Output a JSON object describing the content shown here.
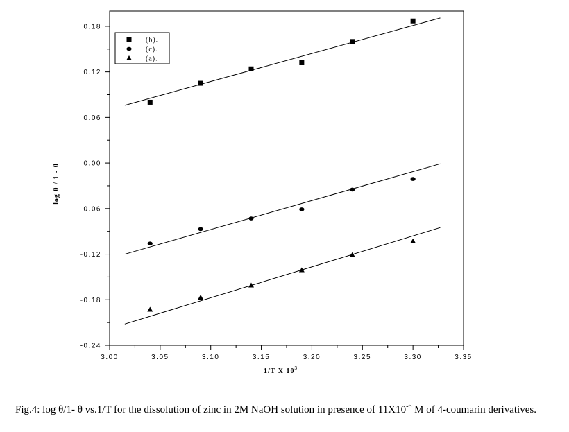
{
  "chart_data": {
    "type": "scatter",
    "title": "",
    "xlabel": "1/T  X  10",
    "xlabel_exp": "3",
    "ylabel": "log θ / 1 - θ",
    "xlim": [
      3.0,
      3.35
    ],
    "ylim": [
      -0.24,
      0.2
    ],
    "x_ticks": [
      "3.00",
      "3.05",
      "3.10",
      "3.15",
      "3.20",
      "3.25",
      "3.30",
      "3.35"
    ],
    "y_ticks": [
      "-0.24",
      "-0.18",
      "-0.12",
      "-0.06",
      "0.00",
      "0.06",
      "0.12",
      "0.18"
    ],
    "legend_position": "top-left",
    "grid": false,
    "series": [
      {
        "name": "(b).",
        "marker": "square",
        "points": [
          [
            3.04,
            0.08
          ],
          [
            3.09,
            0.105
          ],
          [
            3.14,
            0.124
          ],
          [
            3.19,
            0.132
          ],
          [
            3.24,
            0.16
          ],
          [
            3.3,
            0.187
          ]
        ],
        "fit": [
          [
            3.015,
            0.076
          ],
          [
            3.327,
            0.191
          ]
        ]
      },
      {
        "name": "(c).",
        "marker": "circle",
        "points": [
          [
            3.04,
            -0.106
          ],
          [
            3.09,
            -0.087
          ],
          [
            3.14,
            -0.073
          ],
          [
            3.19,
            -0.061
          ],
          [
            3.24,
            -0.035
          ],
          [
            3.3,
            -0.021
          ]
        ],
        "fit": [
          [
            3.015,
            -0.12
          ],
          [
            3.327,
            -0.001
          ]
        ]
      },
      {
        "name": "(a).",
        "marker": "triangle",
        "points": [
          [
            3.04,
            -0.193
          ],
          [
            3.09,
            -0.177
          ],
          [
            3.14,
            -0.161
          ],
          [
            3.19,
            -0.141
          ],
          [
            3.24,
            -0.121
          ],
          [
            3.3,
            -0.103
          ]
        ],
        "fit": [
          [
            3.015,
            -0.212
          ],
          [
            3.327,
            -0.085
          ]
        ]
      }
    ]
  },
  "caption": {
    "lead": "Fig.4: log θ/1- θ vs.1/T for the dissolution of zinc in 2M NaOH solution in presence of 11X10",
    "exp": "-6",
    "tail": " M of 4-coumarin derivatives."
  }
}
